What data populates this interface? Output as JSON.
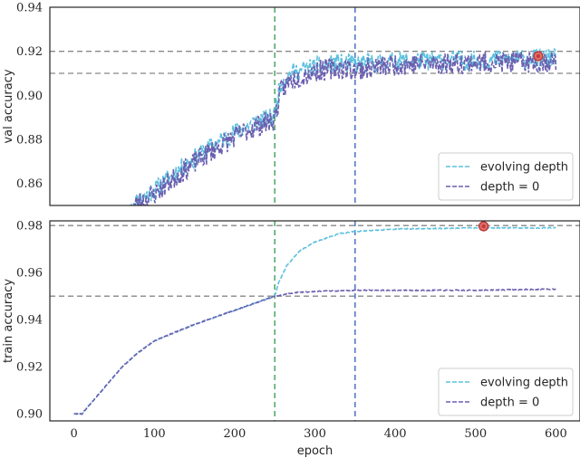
{
  "chart_data": [
    {
      "type": "line",
      "ylabel": "val accuracy",
      "xlim": [
        -30,
        630
      ],
      "ylim": [
        0.85,
        0.94
      ],
      "yticks": [
        "0.86",
        "0.88",
        "0.90",
        "0.92",
        "0.94"
      ],
      "ytick_values": [
        0.86,
        0.88,
        0.9,
        0.92,
        0.94
      ],
      "hlines": [
        0.92,
        0.91
      ],
      "vlines": [
        {
          "x": 250,
          "color": "#4aa564"
        },
        {
          "x": 350,
          "color": "#4a72c4"
        }
      ],
      "marker": {
        "x": 578,
        "y": 0.9178
      },
      "legend": {
        "position": "lower right",
        "entries": [
          "evolving depth",
          "depth = 0"
        ]
      },
      "series": [
        {
          "name": "evolving depth",
          "color": "#5bc0de",
          "noise": 0.0045,
          "seed": 11,
          "points": [
            [
              70,
              0.85
            ],
            [
              100,
              0.857
            ],
            [
              130,
              0.866
            ],
            [
              160,
              0.874
            ],
            [
              190,
              0.881
            ],
            [
              220,
              0.887
            ],
            [
              249,
              0.89
            ],
            [
              252,
              0.896
            ],
            [
              258,
              0.906
            ],
            [
              270,
              0.91
            ],
            [
              300,
              0.913
            ],
            [
              330,
              0.9145
            ],
            [
              350,
              0.914
            ],
            [
              400,
              0.9155
            ],
            [
              500,
              0.9158
            ],
            [
              560,
              0.9165
            ],
            [
              600,
              0.917
            ]
          ]
        },
        {
          "name": "depth = 0",
          "color": "#6c5fb0",
          "noise": 0.005,
          "seed": 23,
          "points": [
            [
              70,
              0.849
            ],
            [
              100,
              0.855
            ],
            [
              130,
              0.864
            ],
            [
              160,
              0.872
            ],
            [
              190,
              0.879
            ],
            [
              220,
              0.885
            ],
            [
              249,
              0.889
            ],
            [
              252,
              0.893
            ],
            [
              258,
              0.902
            ],
            [
              270,
              0.907
            ],
            [
              300,
              0.911
            ],
            [
              330,
              0.9125
            ],
            [
              350,
              0.9115
            ],
            [
              400,
              0.914
            ],
            [
              500,
              0.915
            ],
            [
              560,
              0.915
            ],
            [
              600,
              0.9155
            ]
          ]
        }
      ]
    },
    {
      "type": "line",
      "xlabel": "epoch",
      "ylabel": "train accuracy",
      "xlim": [
        -30,
        630
      ],
      "ylim": [
        0.897,
        0.982
      ],
      "xticks": [
        "0",
        "100",
        "200",
        "300",
        "400",
        "500",
        "600"
      ],
      "xtick_values": [
        0,
        100,
        200,
        300,
        400,
        500,
        600
      ],
      "yticks": [
        "0.90",
        "0.92",
        "0.94",
        "0.96",
        "0.98"
      ],
      "ytick_values": [
        0.9,
        0.92,
        0.94,
        0.96,
        0.98
      ],
      "hlines": [
        0.98,
        0.95
      ],
      "vlines": [
        {
          "x": 250,
          "color": "#4aa564"
        },
        {
          "x": 350,
          "color": "#4a72c4"
        }
      ],
      "marker": {
        "x": 510,
        "y": 0.9797
      },
      "legend": {
        "position": "lower right",
        "entries": [
          "evolving depth",
          "depth = 0"
        ]
      },
      "series": [
        {
          "name": "evolving depth",
          "color": "#5bc0de",
          "noise": 0.0002,
          "seed": 5,
          "points": [
            [
              0,
              0.9
            ],
            [
              10,
              0.9
            ],
            [
              20,
              0.904
            ],
            [
              40,
              0.912
            ],
            [
              60,
              0.92
            ],
            [
              80,
              0.926
            ],
            [
              100,
              0.931
            ],
            [
              150,
              0.938
            ],
            [
              200,
              0.944
            ],
            [
              250,
              0.95
            ],
            [
              255,
              0.956
            ],
            [
              265,
              0.963
            ],
            [
              280,
              0.969
            ],
            [
              300,
              0.973
            ],
            [
              330,
              0.9765
            ],
            [
              350,
              0.9775
            ],
            [
              400,
              0.9785
            ],
            [
              500,
              0.979
            ],
            [
              600,
              0.979
            ]
          ]
        },
        {
          "name": "depth = 0",
          "color": "#6c5fb0",
          "noise": 0.0002,
          "seed": 7,
          "points": [
            [
              0,
              0.9
            ],
            [
              10,
              0.9
            ],
            [
              20,
              0.904
            ],
            [
              40,
              0.912
            ],
            [
              60,
              0.92
            ],
            [
              80,
              0.926
            ],
            [
              100,
              0.931
            ],
            [
              150,
              0.938
            ],
            [
              200,
              0.944
            ],
            [
              250,
              0.95
            ],
            [
              275,
              0.9515
            ],
            [
              300,
              0.952
            ],
            [
              350,
              0.9525
            ],
            [
              400,
              0.9525
            ],
            [
              500,
              0.9525
            ],
            [
              600,
              0.953
            ]
          ]
        }
      ]
    }
  ]
}
